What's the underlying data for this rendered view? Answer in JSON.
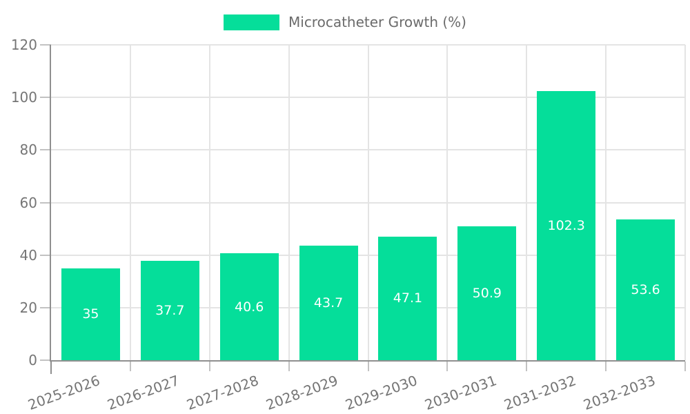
{
  "chart_data": {
    "type": "bar",
    "title": "",
    "legend_label": "Microcatheter Growth (%)",
    "legend_position": "top-center",
    "categories": [
      "2025-2026",
      "2026-2027",
      "2027-2028",
      "2028-2029",
      "2029-2030",
      "2030-2031",
      "2031-2032",
      "2032-2033"
    ],
    "values": [
      35,
      37.7,
      40.6,
      43.7,
      47.1,
      50.9,
      102.3,
      53.6
    ],
    "value_labels": [
      "35",
      "37.7",
      "40.6",
      "43.7",
      "47.1",
      "50.9",
      "102.3",
      "53.6"
    ],
    "xlabel": "",
    "ylabel": "",
    "ylim": [
      0,
      120
    ],
    "yticks": [
      0,
      20,
      40,
      60,
      80,
      100,
      120
    ],
    "grid": true,
    "x_label_rotation_deg": -20,
    "colors": {
      "bar": "#05DE9A",
      "value_label": "#ffffff",
      "axis": "#8f8f8f",
      "grid": "#e4e4e4",
      "tick": "#c2c2c2",
      "tick_label": "#757575",
      "legend_text": "#6b6b6b",
      "background": "#ffffff"
    }
  }
}
